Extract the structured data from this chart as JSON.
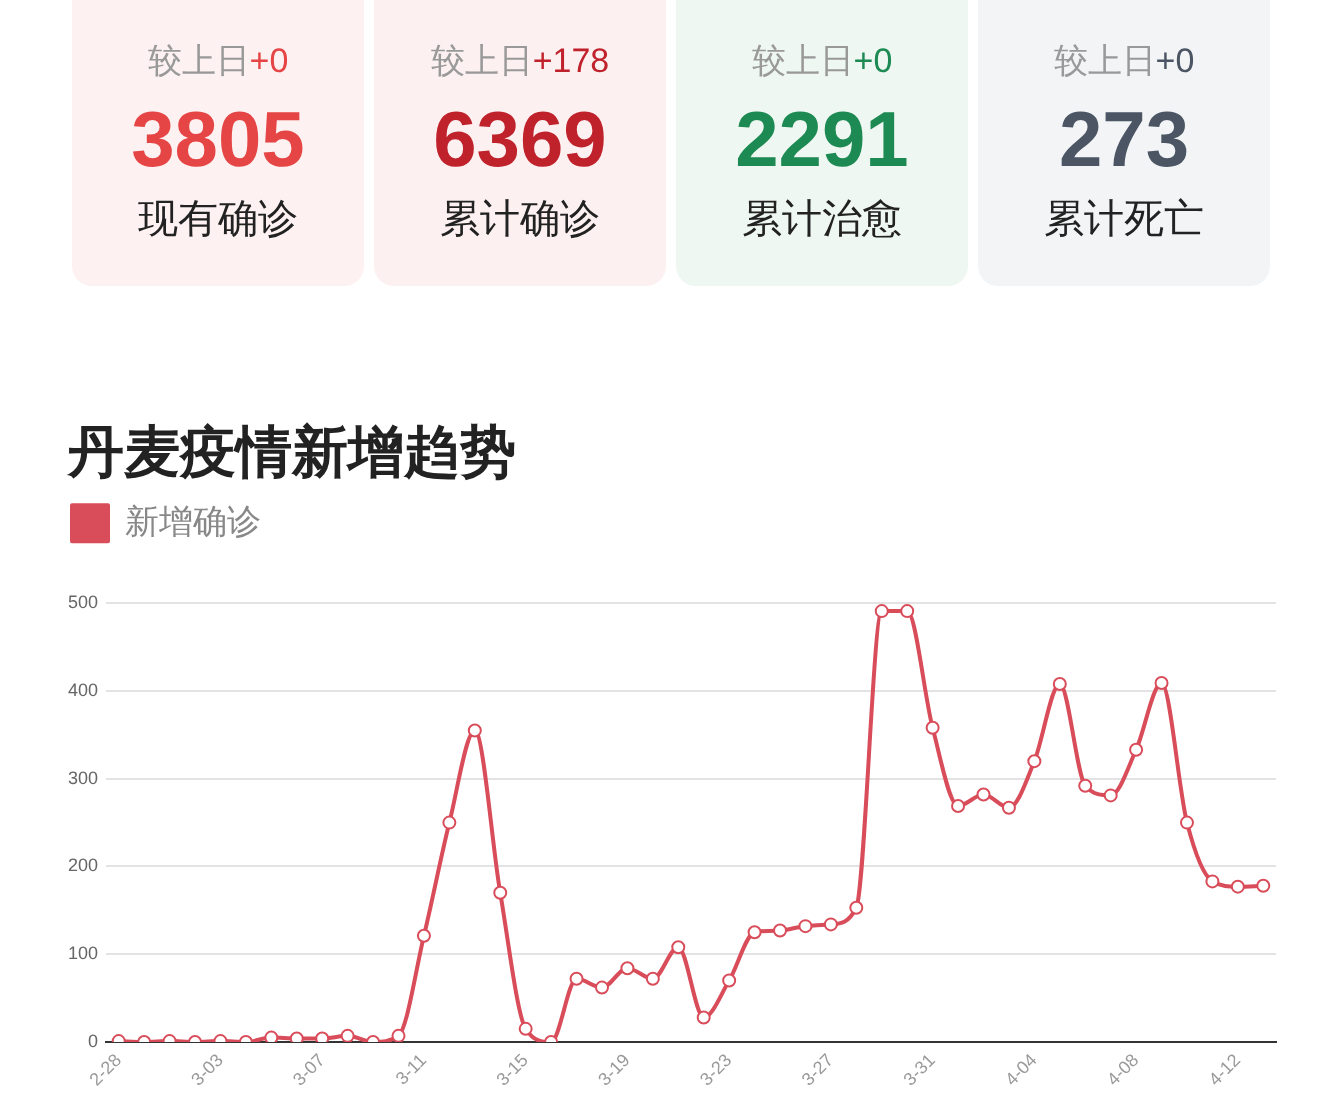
{
  "chart_data": [
    {
      "type": "other",
      "categories": [
        "现有确诊",
        "累计确诊",
        "累计治愈",
        "累计死亡"
      ],
      "data_labels": true,
      "series": [
        {
          "name": "较上日",
          "values": [
            0,
            178,
            0,
            0
          ],
          "value_labels": [
            "+0",
            "+178",
            "+0",
            "+0"
          ],
          "colors": [
            "#e64545",
            "#c0222c",
            "#1c8a52",
            "#4b5563"
          ]
        },
        {
          "values": [
            3805,
            6369,
            2291,
            273
          ],
          "colors": [
            "#e64545",
            "#c0222c",
            "#1c8a52",
            "#4b5563"
          ]
        }
      ]
    },
    {
      "type": "line",
      "title": "丹麦疫情新增趋势",
      "categories": [
        "2-28",
        null,
        null,
        null,
        "3-03",
        null,
        null,
        null,
        "3-07",
        null,
        null,
        null,
        "3-11",
        null,
        null,
        null,
        "3-15",
        null,
        null,
        null,
        "3-19",
        null,
        null,
        null,
        "3-23",
        null,
        null,
        null,
        "3-27",
        null,
        null,
        null,
        "3-31",
        null,
        null,
        null,
        "4-04",
        null,
        null,
        null,
        "4-08",
        null,
        null,
        null,
        "4-12",
        null
      ],
      "series": [
        {
          "name": "新增确诊",
          "color": "#d94c5a",
          "values": [
            1,
            0,
            1,
            0,
            1,
            0,
            5,
            4,
            4,
            7,
            0,
            7,
            121,
            250,
            355,
            170,
            15,
            0,
            72,
            62,
            84,
            72,
            108,
            28,
            70,
            125,
            127,
            132,
            134,
            153,
            491,
            491,
            358,
            269,
            282,
            267,
            320,
            408,
            292,
            281,
            333,
            409,
            250,
            183,
            177,
            178
          ]
        }
      ],
      "ylim": [
        0,
        500
      ],
      "yticks": [
        0,
        100,
        200,
        300,
        400,
        500
      ],
      "grid": "y",
      "legend": "top left",
      "marker": "circle"
    }
  ]
}
